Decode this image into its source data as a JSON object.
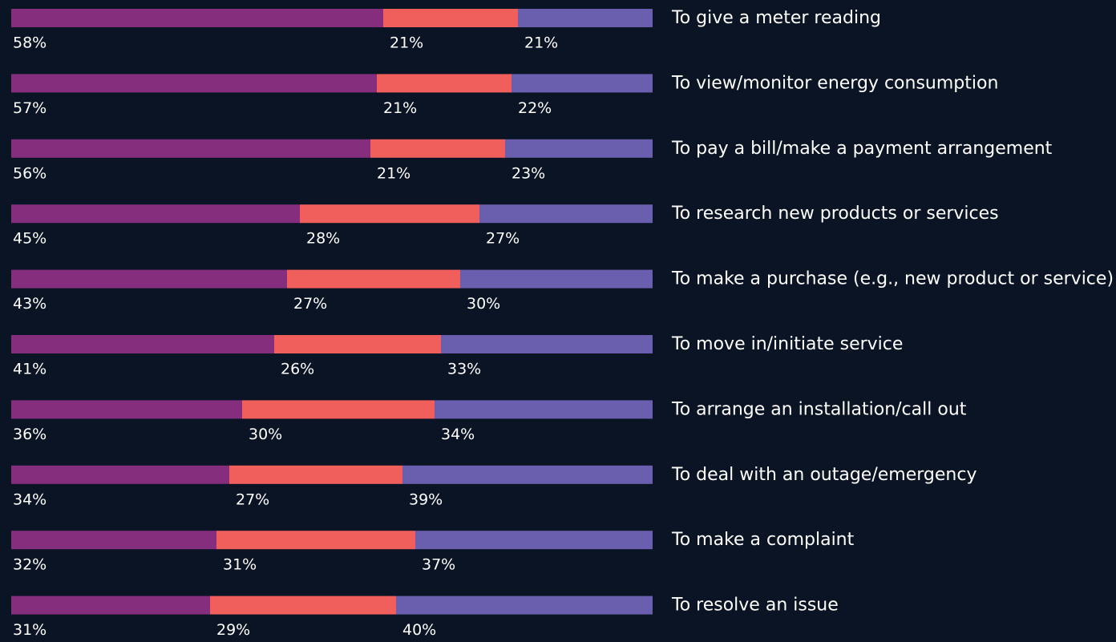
{
  "chart_data": {
    "type": "stacked-bar-horizontal",
    "categories": [
      "To give a meter reading",
      "To view/monitor energy consumption",
      "To pay a bill/make a payment arrangement",
      "To research new products or services",
      "To make a purchase (e.g., new product or service)",
      "To move in/initiate service",
      "To arrange an installation/call out",
      "To deal with an outage/emergency",
      "To make a complaint",
      "To resolve an issue"
    ],
    "series": [
      {
        "color": "#862e7e",
        "values": [
          58,
          57,
          56,
          45,
          43,
          41,
          36,
          34,
          32,
          31
        ],
        "value_labels": [
          "58%",
          "57%",
          "56%",
          "45%",
          "43%",
          "41%",
          "36%",
          "34%",
          "32%",
          "31%"
        ]
      },
      {
        "color": "#f05f5c",
        "values": [
          21,
          21,
          21,
          28,
          27,
          26,
          30,
          27,
          31,
          29
        ],
        "value_labels": [
          "21%",
          "21%",
          "21%",
          "28%",
          "27%",
          "26%",
          "30%",
          "27%",
          "31%",
          "29%"
        ]
      },
      {
        "color": "#6a5fae",
        "values": [
          21,
          22,
          23,
          27,
          30,
          33,
          34,
          39,
          37,
          40
        ],
        "value_labels": [
          "21%",
          "22%",
          "23%",
          "27%",
          "30%",
          "33%",
          "34%",
          "39%",
          "37%",
          "40%"
        ]
      }
    ],
    "xlim": [
      0,
      100
    ]
  }
}
